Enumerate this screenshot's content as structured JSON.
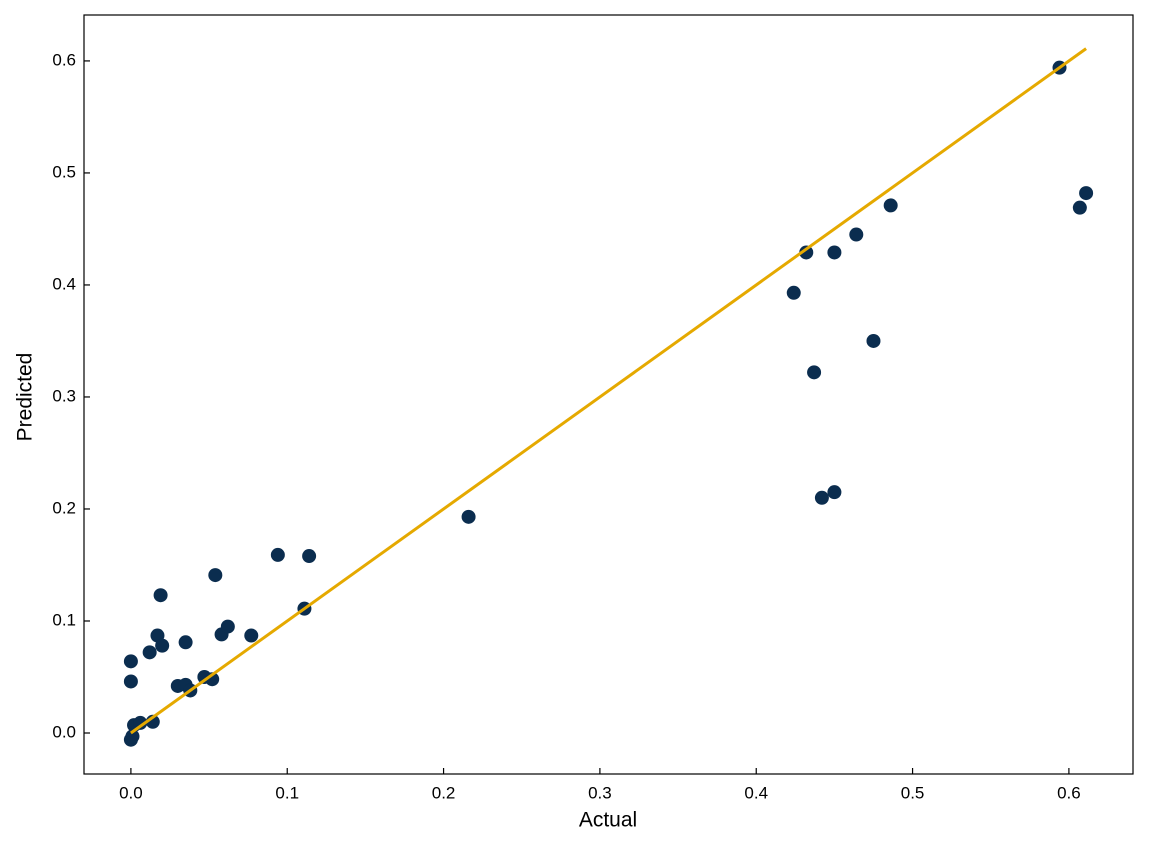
{
  "chart_data": {
    "type": "scatter",
    "x_label": "Actual",
    "y_label": "Predicted",
    "xlim": [
      -0.03,
      0.641
    ],
    "ylim": [
      -0.0366,
      0.641
    ],
    "xticks": [
      {
        "value": 0,
        "label": "0.0"
      },
      0.1,
      0.2,
      0.3,
      0.4,
      0.5,
      0.6
    ],
    "yticks": [
      {
        "value": 0,
        "label": "0.0"
      },
      0.1,
      0.2,
      0.3,
      0.4,
      0.5,
      0.6
    ],
    "series": [
      {
        "type": "scatter",
        "color": "#0b2d4f",
        "x": [
          0,
          0.001,
          0.002,
          0.006,
          0.014,
          0,
          0,
          0.012,
          0.017,
          0.02,
          0.019,
          0.03,
          0.035,
          0.038,
          0.035,
          0.047,
          0.052,
          0.054,
          0.058,
          0.062,
          0.077,
          0.094,
          0.111,
          0.114,
          0.216,
          0.424,
          0.432,
          0.437,
          0.442,
          0.45,
          0.45,
          0.464,
          0.475,
          0.486,
          0.594,
          0.607,
          0.611
        ],
        "values": [
          -0.006,
          -0.003,
          0.007,
          0.009,
          0.01,
          0.046,
          0.064,
          0.072,
          0.087,
          0.078,
          0.123,
          0.042,
          0.043,
          0.038,
          0.081,
          0.05,
          0.048,
          0.141,
          0.088,
          0.095,
          0.087,
          0.159,
          0.111,
          0.158,
          0.193,
          0.393,
          0.429,
          0.322,
          0.21,
          0.215,
          0.429,
          0.445,
          0.35,
          0.471,
          0.594,
          0.469,
          0.482
        ]
      },
      {
        "type": "line",
        "color": "#e5a900",
        "x": [
          0,
          0.611
        ],
        "values": [
          0,
          0.611
        ]
      }
    ]
  }
}
